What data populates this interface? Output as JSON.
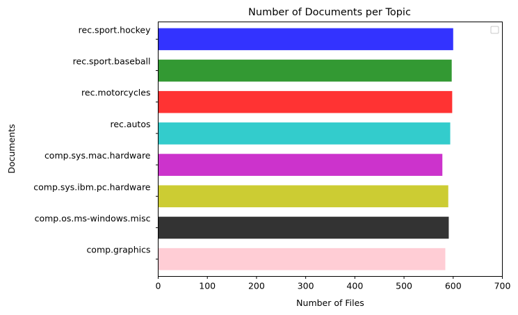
{
  "chart_data": {
    "type": "bar",
    "orientation": "horizontal",
    "title": "Number of Documents per Topic",
    "xlabel": "Number of Files",
    "ylabel": "Documents",
    "xlim": [
      0,
      700
    ],
    "xticks": [
      "0",
      "100",
      "200",
      "300",
      "400",
      "500",
      "600",
      "700"
    ],
    "categories": [
      "comp.graphics",
      "comp.os.ms-windows.misc",
      "comp.sys.ibm.pc.hardware",
      "comp.sys.mac.hardware",
      "rec.autos",
      "rec.motorcycles",
      "rec.sport.baseball",
      "rec.sport.hockey"
    ],
    "values": [
      584,
      591,
      590,
      578,
      594,
      598,
      597,
      600
    ],
    "colors": [
      "#ffc0cb",
      "#000000",
      "#bfbf00",
      "#bf00bf",
      "#00bfbf",
      "#ff0000",
      "#008000",
      "#0000ff"
    ],
    "bar_opacity": 0.8,
    "grid": false,
    "legend": "top-right (empty)"
  }
}
